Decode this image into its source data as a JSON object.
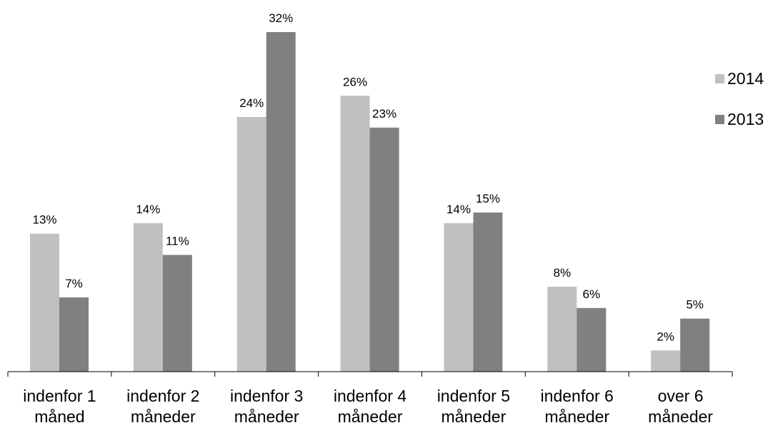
{
  "chart_data": {
    "type": "bar",
    "categories": [
      [
        "indenfor 1",
        "måned"
      ],
      [
        "indenfor 2",
        "måneder"
      ],
      [
        "indenfor 3",
        "måneder"
      ],
      [
        "indenfor 4",
        "måneder"
      ],
      [
        "indenfor 5",
        "måneder"
      ],
      [
        "indenfor 6",
        "måneder"
      ],
      [
        "over 6",
        "måneder"
      ]
    ],
    "series": [
      {
        "name": "2014",
        "color": "#c0c0c0",
        "values": [
          13,
          14,
          24,
          26,
          14,
          8,
          2
        ]
      },
      {
        "name": "2013",
        "color": "#808080",
        "values": [
          7,
          11,
          32,
          23,
          15,
          6,
          5
        ]
      }
    ],
    "value_suffix": "%",
    "ylim": [
      0,
      32
    ],
    "title": "",
    "xlabel": "",
    "ylabel": "",
    "grid": false,
    "legend": "top-right",
    "data_labels": true
  }
}
